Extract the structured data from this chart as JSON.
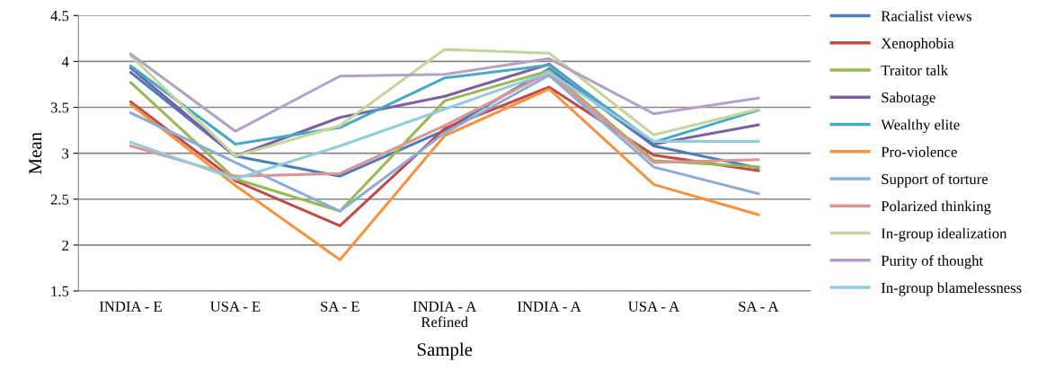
{
  "chart_data": {
    "type": "line",
    "xlabel": "Sample",
    "ylabel": "Mean",
    "categories": [
      "INDIA - E",
      "USA - E",
      "SA - E",
      "INDIA - A\nRefined",
      "INDIA - A",
      "USA - A",
      "SA - A"
    ],
    "ylim": [
      1.5,
      4.5
    ],
    "yticks": [
      1.5,
      2,
      2.5,
      3,
      3.5,
      4,
      4.5
    ],
    "grid": "y",
    "legend": "right",
    "marker": "none",
    "line_style": "solid",
    "series": [
      {
        "name": "Racialist views",
        "color": "#4a7ebb",
        "values": [
          3.88,
          2.97,
          2.75,
          3.25,
          3.92,
          3.08,
          2.84
        ]
      },
      {
        "name": "Xenophobia",
        "color": "#be4b48",
        "values": [
          3.56,
          2.7,
          2.21,
          3.27,
          3.72,
          2.98,
          2.81
        ]
      },
      {
        "name": "Traitor talk",
        "color": "#98b954",
        "values": [
          3.77,
          2.72,
          2.37,
          3.57,
          3.9,
          2.92,
          2.85
        ]
      },
      {
        "name": "Sabotage",
        "color": "#7d60a0",
        "values": [
          3.93,
          2.97,
          3.39,
          3.62,
          3.97,
          3.1,
          3.31
        ]
      },
      {
        "name": "Wealthy elite",
        "color": "#46aac5",
        "values": [
          3.95,
          3.1,
          3.28,
          3.82,
          3.96,
          3.12,
          3.47
        ]
      },
      {
        "name": "Pro-violence",
        "color": "#f69240",
        "values": [
          3.53,
          2.65,
          1.84,
          3.19,
          3.7,
          2.66,
          2.33
        ]
      },
      {
        "name": "Support of torture",
        "color": "#8eacd8",
        "values": [
          3.44,
          2.9,
          2.37,
          3.22,
          3.85,
          2.85,
          2.56
        ]
      },
      {
        "name": "Polarized thinking",
        "color": "#d99694",
        "values": [
          3.08,
          2.75,
          2.78,
          3.3,
          3.88,
          2.9,
          2.93
        ]
      },
      {
        "name": "In-group idealization",
        "color": "#c3d69b",
        "values": [
          4.06,
          2.97,
          3.3,
          4.13,
          4.09,
          3.2,
          3.48
        ]
      },
      {
        "name": "Purity of thought",
        "color": "#b3a2c7",
        "values": [
          4.08,
          3.24,
          3.84,
          3.86,
          4.03,
          3.43,
          3.6
        ]
      },
      {
        "name": "In-group blamelessness",
        "color": "#93cddd",
        "values": [
          3.12,
          2.72,
          3.08,
          3.48,
          3.88,
          3.13,
          3.13
        ]
      }
    ]
  }
}
